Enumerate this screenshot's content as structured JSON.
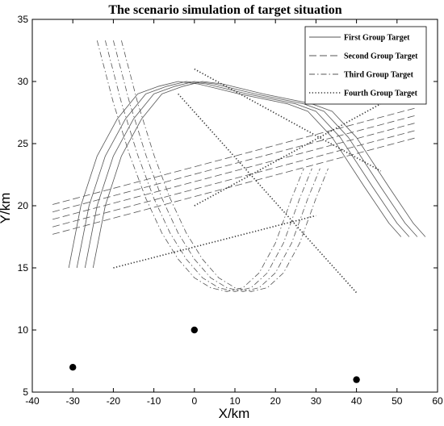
{
  "chart_data": {
    "type": "line",
    "title": "The scenario simulation of target situation",
    "xlabel": "X/km",
    "ylabel": "Y/km",
    "xlim": [
      -40,
      60
    ],
    "ylim": [
      5,
      35
    ],
    "x_ticks": [
      -40,
      -30,
      -20,
      -10,
      0,
      10,
      20,
      30,
      40,
      50,
      60
    ],
    "y_ticks": [
      5,
      10,
      15,
      20,
      25,
      30,
      35
    ],
    "grid": false,
    "legend_position": "top-right",
    "legend": [
      {
        "label": "First Group Target",
        "style": "solid"
      },
      {
        "label": "Second Group Target",
        "style": "dashed"
      },
      {
        "label": "Third Group Target",
        "style": "dashdot"
      },
      {
        "label": "Fourth Group Target",
        "style": "dotted"
      }
    ],
    "series": [
      {
        "group": "first",
        "style": "solid",
        "x": [
          -31,
          -28,
          -24,
          -19,
          -14,
          -9,
          -4,
          1,
          11,
          23,
          28,
          34,
          42,
          48,
          51
        ],
        "y": [
          15,
          20,
          24,
          27,
          29,
          29.6,
          30,
          29.8,
          29,
          28.2,
          27.6,
          25.5,
          21.5,
          18.6,
          17.5
        ]
      },
      {
        "group": "first",
        "style": "solid",
        "x": [
          -29,
          -26,
          -22,
          -17,
          -12,
          -7,
          -2,
          3,
          13,
          25,
          30,
          36,
          44,
          50,
          53
        ],
        "y": [
          15,
          20,
          24,
          27,
          29,
          29.6,
          30,
          29.8,
          29,
          28.2,
          27.6,
          25.5,
          21.5,
          18.6,
          17.5
        ]
      },
      {
        "group": "first",
        "style": "solid",
        "x": [
          -27,
          -24,
          -20,
          -15,
          -10,
          -5,
          0,
          5,
          15,
          27,
          32,
          38,
          46,
          52,
          55
        ],
        "y": [
          15,
          20,
          24,
          27,
          29,
          29.6,
          30,
          29.8,
          29,
          28.2,
          27.6,
          25.5,
          21.5,
          18.6,
          17.5
        ]
      },
      {
        "group": "first",
        "style": "solid",
        "x": [
          -25,
          -22,
          -18,
          -13,
          -8,
          -3,
          2,
          7,
          17,
          29,
          34,
          40,
          48,
          54,
          57
        ],
        "y": [
          15,
          20,
          24,
          27,
          29,
          29.6,
          30,
          29.8,
          29,
          28.2,
          27.6,
          25.5,
          21.5,
          18.6,
          17.5
        ]
      },
      {
        "group": "second",
        "style": "dashed",
        "x": [
          -35,
          55
        ],
        "y": [
          20.1,
          27.9
        ]
      },
      {
        "group": "second",
        "style": "dashed",
        "x": [
          -35,
          55
        ],
        "y": [
          19.5,
          27.3
        ]
      },
      {
        "group": "second",
        "style": "dashed",
        "x": [
          -35,
          55
        ],
        "y": [
          18.9,
          26.7
        ]
      },
      {
        "group": "second",
        "style": "dashed",
        "x": [
          -35,
          55
        ],
        "y": [
          18.3,
          26.1
        ]
      },
      {
        "group": "second",
        "style": "dashed",
        "x": [
          -35,
          55
        ],
        "y": [
          17.7,
          25.5
        ]
      },
      {
        "group": "third",
        "style": "dashdot",
        "x": [
          -24,
          -20,
          -16,
          -12,
          -8,
          -4,
          0,
          4,
          8,
          12,
          16,
          20,
          24,
          27
        ],
        "y": [
          33.3,
          28.3,
          24.1,
          20.6,
          17.8,
          15.7,
          14.2,
          13.4,
          13.1,
          13.4,
          14.6,
          17.0,
          20.6,
          23.0
        ]
      },
      {
        "group": "third",
        "style": "dashdot",
        "x": [
          -22,
          -18,
          -14,
          -10,
          -6,
          -2,
          2,
          6,
          10,
          14,
          18,
          22,
          26,
          29
        ],
        "y": [
          33.3,
          28.3,
          24.1,
          20.6,
          17.8,
          15.7,
          14.2,
          13.4,
          13.1,
          13.4,
          14.6,
          17.0,
          20.6,
          23.0
        ]
      },
      {
        "group": "third",
        "style": "dashdot",
        "x": [
          -20,
          -16,
          -12,
          -8,
          -4,
          0,
          4,
          8,
          12,
          16,
          20,
          24,
          28,
          31
        ],
        "y": [
          33.3,
          28.3,
          24.1,
          20.6,
          17.8,
          15.7,
          14.2,
          13.4,
          13.1,
          13.4,
          14.6,
          17.0,
          20.6,
          23.0
        ]
      },
      {
        "group": "third",
        "style": "dashdot",
        "x": [
          -18,
          -14,
          -10,
          -6,
          -2,
          2,
          6,
          10,
          14,
          18,
          22,
          26,
          30,
          33
        ],
        "y": [
          33.3,
          28.3,
          24.1,
          20.6,
          17.8,
          15.7,
          14.2,
          13.4,
          13.1,
          13.4,
          14.6,
          17.0,
          20.6,
          23.0
        ]
      },
      {
        "group": "fourth",
        "style": "dotted",
        "x": [
          -20,
          30
        ],
        "y": [
          15,
          19.2
        ]
      },
      {
        "group": "fourth",
        "style": "dotted",
        "x": [
          0,
          46
        ],
        "y": [
          20,
          28.2
        ]
      },
      {
        "group": "fourth",
        "style": "dotted",
        "x": [
          -4,
          40
        ],
        "y": [
          29,
          13
        ]
      },
      {
        "group": "fourth",
        "style": "dotted",
        "x": [
          0,
          46
        ],
        "y": [
          31,
          22.8
        ]
      }
    ],
    "markers": [
      {
        "x": -30,
        "y": 7
      },
      {
        "x": 0,
        "y": 10
      },
      {
        "x": 40,
        "y": 6
      }
    ]
  }
}
